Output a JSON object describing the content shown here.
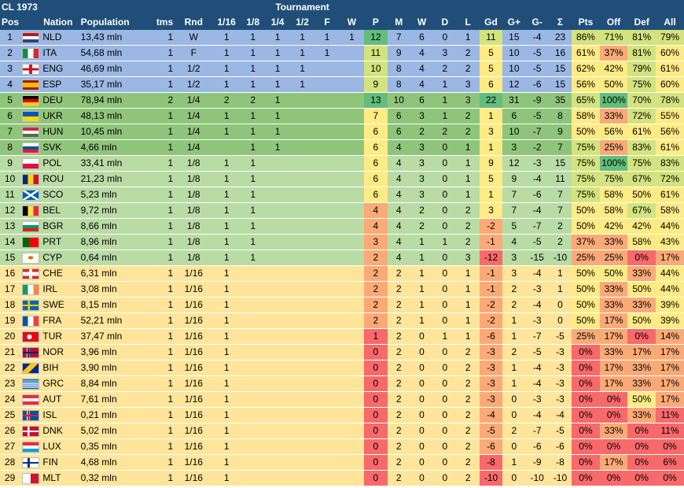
{
  "title": "CL 1973",
  "tournament_label": "Tournament",
  "columns": [
    "Pos",
    "Nation",
    "Population",
    "tms",
    "Rnd",
    "1/16",
    "1/8",
    "1/4",
    "1/2",
    "F",
    "W",
    "P",
    "M",
    "W",
    "D",
    "L",
    "Gd",
    "G+",
    "G-",
    "Σ",
    "Pts",
    "Off",
    "Def",
    "All"
  ],
  "colors": {
    "header": "#1f4e79",
    "band_top": "#9bb7e3",
    "band_group2": "#8fc57a",
    "band_group3": "#b9dba4",
    "band_bottom": "#ffe59a",
    "cell_red": "#f8696b",
    "cell_orange": "#fbaa77",
    "cell_yellow": "#ffeb84",
    "cell_lightgreen": "#d3e37e",
    "cell_green": "#63be7b",
    "cell_midgreen": "#a3d07f"
  },
  "rows": [
    {
      "pos": "1",
      "flag": "flag-nld",
      "nation": "NLD",
      "population": "13,43 mln",
      "tms": "1",
      "rnd": "W",
      "r16": "1",
      "r8": "1",
      "r4": "1",
      "r2": "1",
      "f": "1",
      "w": "1",
      "p": "12",
      "m": "7",
      "wins": "6",
      "d": "0",
      "l": "1",
      "gd": "11",
      "gp": "15",
      "gm": "-4",
      "sum": "23",
      "pts": "86%",
      "off": "71%",
      "def": "81%",
      "all": "79%"
    },
    {
      "pos": "2",
      "flag": "flag-ita",
      "nation": "ITA",
      "population": "54,68 mln",
      "tms": "1",
      "rnd": "F",
      "r16": "1",
      "r8": "1",
      "r4": "1",
      "r2": "1",
      "f": "1",
      "w": "",
      "p": "11",
      "m": "9",
      "wins": "4",
      "d": "3",
      "l": "2",
      "gd": "5",
      "gp": "10",
      "gm": "-5",
      "sum": "16",
      "pts": "61%",
      "off": "37%",
      "def": "81%",
      "all": "60%"
    },
    {
      "pos": "3",
      "flag": "flag-eng",
      "nation": "ENG",
      "population": "46,69 mln",
      "tms": "1",
      "rnd": "1/2",
      "r16": "1",
      "r8": "1",
      "r4": "1",
      "r2": "1",
      "f": "",
      "w": "",
      "p": "10",
      "m": "8",
      "wins": "4",
      "d": "2",
      "l": "2",
      "gd": "5",
      "gp": "10",
      "gm": "-5",
      "sum": "15",
      "pts": "62%",
      "off": "42%",
      "def": "79%",
      "all": "61%"
    },
    {
      "pos": "4",
      "flag": "flag-esp",
      "nation": "ESP",
      "population": "35,17 mln",
      "tms": "1",
      "rnd": "1/2",
      "r16": "1",
      "r8": "1",
      "r4": "1",
      "r2": "1",
      "f": "",
      "w": "",
      "p": "9",
      "m": "8",
      "wins": "4",
      "d": "1",
      "l": "3",
      "gd": "6",
      "gp": "12",
      "gm": "-6",
      "sum": "15",
      "pts": "56%",
      "off": "50%",
      "def": "75%",
      "all": "60%"
    },
    {
      "pos": "5",
      "flag": "flag-deu",
      "nation": "DEU",
      "population": "78,94 mln",
      "tms": "2",
      "rnd": "1/4",
      "r16": "2",
      "r8": "2",
      "r4": "1",
      "r2": "",
      "f": "",
      "w": "",
      "p": "13",
      "m": "10",
      "wins": "6",
      "d": "1",
      "l": "3",
      "gd": "22",
      "gp": "31",
      "gm": "-9",
      "sum": "35",
      "pts": "65%",
      "off": "100%",
      "def": "70%",
      "all": "78%"
    },
    {
      "pos": "6",
      "flag": "flag-ukr",
      "nation": "UKR",
      "population": "48,13 mln",
      "tms": "1",
      "rnd": "1/4",
      "r16": "1",
      "r8": "1",
      "r4": "1",
      "r2": "",
      "f": "",
      "w": "",
      "p": "7",
      "m": "6",
      "wins": "3",
      "d": "1",
      "l": "2",
      "gd": "1",
      "gp": "6",
      "gm": "-5",
      "sum": "8",
      "pts": "58%",
      "off": "33%",
      "def": "72%",
      "all": "55%"
    },
    {
      "pos": "7",
      "flag": "flag-hun",
      "nation": "HUN",
      "population": "10,45 mln",
      "tms": "1",
      "rnd": "1/4",
      "r16": "1",
      "r8": "1",
      "r4": "1",
      "r2": "",
      "f": "",
      "w": "",
      "p": "6",
      "m": "6",
      "wins": "2",
      "d": "2",
      "l": "2",
      "gd": "3",
      "gp": "10",
      "gm": "-7",
      "sum": "9",
      "pts": "50%",
      "off": "56%",
      "def": "61%",
      "all": "56%"
    },
    {
      "pos": "8",
      "flag": "flag-svk",
      "nation": "SVK",
      "population": "4,66 mln",
      "tms": "1",
      "rnd": "1/4",
      "r16": "",
      "r8": "1",
      "r4": "1",
      "r2": "",
      "f": "",
      "w": "",
      "p": "6",
      "m": "4",
      "wins": "3",
      "d": "0",
      "l": "1",
      "gd": "1",
      "gp": "3",
      "gm": "-2",
      "sum": "7",
      "pts": "75%",
      "off": "25%",
      "def": "83%",
      "all": "61%"
    },
    {
      "pos": "9",
      "flag": "flag-pol",
      "nation": "POL",
      "population": "33,41 mln",
      "tms": "1",
      "rnd": "1/8",
      "r16": "1",
      "r8": "1",
      "r4": "",
      "r2": "",
      "f": "",
      "w": "",
      "p": "6",
      "m": "4",
      "wins": "3",
      "d": "0",
      "l": "1",
      "gd": "9",
      "gp": "12",
      "gm": "-3",
      "sum": "15",
      "pts": "75%",
      "off": "100%",
      "def": "75%",
      "all": "83%"
    },
    {
      "pos": "10",
      "flag": "flag-rou",
      "nation": "ROU",
      "population": "21,23 mln",
      "tms": "1",
      "rnd": "1/8",
      "r16": "1",
      "r8": "1",
      "r4": "",
      "r2": "",
      "f": "",
      "w": "",
      "p": "6",
      "m": "4",
      "wins": "3",
      "d": "0",
      "l": "1",
      "gd": "5",
      "gp": "9",
      "gm": "-4",
      "sum": "11",
      "pts": "75%",
      "off": "75%",
      "def": "67%",
      "all": "72%"
    },
    {
      "pos": "11",
      "flag": "flag-sco",
      "nation": "SCO",
      "population": "5,23 mln",
      "tms": "1",
      "rnd": "1/8",
      "r16": "1",
      "r8": "1",
      "r4": "",
      "r2": "",
      "f": "",
      "w": "",
      "p": "6",
      "m": "4",
      "wins": "3",
      "d": "0",
      "l": "1",
      "gd": "1",
      "gp": "7",
      "gm": "-6",
      "sum": "7",
      "pts": "75%",
      "off": "58%",
      "def": "50%",
      "all": "61%"
    },
    {
      "pos": "12",
      "flag": "flag-bel",
      "nation": "BEL",
      "population": "9,72 mln",
      "tms": "1",
      "rnd": "1/8",
      "r16": "1",
      "r8": "1",
      "r4": "",
      "r2": "",
      "f": "",
      "w": "",
      "p": "4",
      "m": "4",
      "wins": "2",
      "d": "0",
      "l": "2",
      "gd": "3",
      "gp": "7",
      "gm": "-4",
      "sum": "7",
      "pts": "50%",
      "off": "58%",
      "def": "67%",
      "all": "58%"
    },
    {
      "pos": "13",
      "flag": "flag-bgr",
      "nation": "BGR",
      "population": "8,66 mln",
      "tms": "1",
      "rnd": "1/8",
      "r16": "1",
      "r8": "1",
      "r4": "",
      "r2": "",
      "f": "",
      "w": "",
      "p": "4",
      "m": "4",
      "wins": "2",
      "d": "0",
      "l": "2",
      "gd": "-2",
      "gp": "5",
      "gm": "-7",
      "sum": "2",
      "pts": "50%",
      "off": "42%",
      "def": "42%",
      "all": "44%"
    },
    {
      "pos": "14",
      "flag": "flag-prt",
      "nation": "PRT",
      "population": "8,96 mln",
      "tms": "1",
      "rnd": "1/8",
      "r16": "1",
      "r8": "1",
      "r4": "",
      "r2": "",
      "f": "",
      "w": "",
      "p": "3",
      "m": "4",
      "wins": "1",
      "d": "1",
      "l": "2",
      "gd": "-1",
      "gp": "4",
      "gm": "-5",
      "sum": "2",
      "pts": "37%",
      "off": "33%",
      "def": "58%",
      "all": "43%"
    },
    {
      "pos": "15",
      "flag": "flag-cyp",
      "nation": "CYP",
      "population": "0,64 mln",
      "tms": "1",
      "rnd": "1/8",
      "r16": "1",
      "r8": "1",
      "r4": "",
      "r2": "",
      "f": "",
      "w": "",
      "p": "2",
      "m": "4",
      "wins": "1",
      "d": "0",
      "l": "3",
      "gd": "-12",
      "gp": "3",
      "gm": "-15",
      "sum": "-10",
      "pts": "25%",
      "off": "25%",
      "def": "0%",
      "all": "17%"
    },
    {
      "pos": "16",
      "flag": "flag-che",
      "nation": "CHE",
      "population": "6,31 mln",
      "tms": "1",
      "rnd": "1/16",
      "r16": "1",
      "r8": "",
      "r4": "",
      "r2": "",
      "f": "",
      "w": "",
      "p": "2",
      "m": "2",
      "wins": "1",
      "d": "0",
      "l": "1",
      "gd": "-1",
      "gp": "3",
      "gm": "-4",
      "sum": "1",
      "pts": "50%",
      "off": "50%",
      "def": "33%",
      "all": "44%"
    },
    {
      "pos": "17",
      "flag": "flag-irl",
      "nation": "IRL",
      "population": "3,08 mln",
      "tms": "1",
      "rnd": "1/16",
      "r16": "1",
      "r8": "",
      "r4": "",
      "r2": "",
      "f": "",
      "w": "",
      "p": "2",
      "m": "2",
      "wins": "1",
      "d": "0",
      "l": "1",
      "gd": "-1",
      "gp": "2",
      "gm": "-3",
      "sum": "1",
      "pts": "50%",
      "off": "33%",
      "def": "50%",
      "all": "44%"
    },
    {
      "pos": "18",
      "flag": "flag-swe",
      "nation": "SWE",
      "population": "8,15 mln",
      "tms": "1",
      "rnd": "1/16",
      "r16": "1",
      "r8": "",
      "r4": "",
      "r2": "",
      "f": "",
      "w": "",
      "p": "2",
      "m": "2",
      "wins": "1",
      "d": "0",
      "l": "1",
      "gd": "-2",
      "gp": "2",
      "gm": "-4",
      "sum": "0",
      "pts": "50%",
      "off": "33%",
      "def": "33%",
      "all": "39%"
    },
    {
      "pos": "19",
      "flag": "flag-fra",
      "nation": "FRA",
      "population": "52,21 mln",
      "tms": "1",
      "rnd": "1/16",
      "r16": "1",
      "r8": "",
      "r4": "",
      "r2": "",
      "f": "",
      "w": "",
      "p": "2",
      "m": "2",
      "wins": "1",
      "d": "0",
      "l": "1",
      "gd": "-2",
      "gp": "1",
      "gm": "-3",
      "sum": "0",
      "pts": "50%",
      "off": "17%",
      "def": "50%",
      "all": "39%"
    },
    {
      "pos": "20",
      "flag": "flag-tur",
      "nation": "TUR",
      "population": "37,47 mln",
      "tms": "1",
      "rnd": "1/16",
      "r16": "1",
      "r8": "",
      "r4": "",
      "r2": "",
      "f": "",
      "w": "",
      "p": "1",
      "m": "2",
      "wins": "0",
      "d": "1",
      "l": "1",
      "gd": "-6",
      "gp": "1",
      "gm": "-7",
      "sum": "-5",
      "pts": "25%",
      "off": "17%",
      "def": "0%",
      "all": "14%"
    },
    {
      "pos": "21",
      "flag": "flag-nor",
      "nation": "NOR",
      "population": "3,96 mln",
      "tms": "1",
      "rnd": "1/16",
      "r16": "1",
      "r8": "",
      "r4": "",
      "r2": "",
      "f": "",
      "w": "",
      "p": "0",
      "m": "2",
      "wins": "0",
      "d": "0",
      "l": "2",
      "gd": "-3",
      "gp": "2",
      "gm": "-5",
      "sum": "-3",
      "pts": "0%",
      "off": "33%",
      "def": "17%",
      "all": "17%"
    },
    {
      "pos": "22",
      "flag": "flag-bih",
      "nation": "BIH",
      "population": "3,90 mln",
      "tms": "1",
      "rnd": "1/16",
      "r16": "1",
      "r8": "",
      "r4": "",
      "r2": "",
      "f": "",
      "w": "",
      "p": "0",
      "m": "2",
      "wins": "0",
      "d": "0",
      "l": "2",
      "gd": "-3",
      "gp": "1",
      "gm": "-4",
      "sum": "-3",
      "pts": "0%",
      "off": "17%",
      "def": "33%",
      "all": "17%"
    },
    {
      "pos": "23",
      "flag": "flag-grc",
      "nation": "GRC",
      "population": "8,84 mln",
      "tms": "1",
      "rnd": "1/16",
      "r16": "1",
      "r8": "",
      "r4": "",
      "r2": "",
      "f": "",
      "w": "",
      "p": "0",
      "m": "2",
      "wins": "0",
      "d": "0",
      "l": "2",
      "gd": "-3",
      "gp": "1",
      "gm": "-4",
      "sum": "-3",
      "pts": "0%",
      "off": "17%",
      "def": "33%",
      "all": "17%"
    },
    {
      "pos": "24",
      "flag": "flag-aut",
      "nation": "AUT",
      "population": "7,61 mln",
      "tms": "1",
      "rnd": "1/16",
      "r16": "1",
      "r8": "",
      "r4": "",
      "r2": "",
      "f": "",
      "w": "",
      "p": "0",
      "m": "2",
      "wins": "0",
      "d": "0",
      "l": "2",
      "gd": "-3",
      "gp": "0",
      "gm": "-3",
      "sum": "-3",
      "pts": "0%",
      "off": "0%",
      "def": "50%",
      "all": "17%"
    },
    {
      "pos": "25",
      "flag": "flag-isl",
      "nation": "ISL",
      "population": "0,21 mln",
      "tms": "1",
      "rnd": "1/16",
      "r16": "1",
      "r8": "",
      "r4": "",
      "r2": "",
      "f": "",
      "w": "",
      "p": "0",
      "m": "2",
      "wins": "0",
      "d": "0",
      "l": "2",
      "gd": "-4",
      "gp": "0",
      "gm": "-4",
      "sum": "-4",
      "pts": "0%",
      "off": "0%",
      "def": "33%",
      "all": "11%"
    },
    {
      "pos": "26",
      "flag": "flag-dnk",
      "nation": "DNK",
      "population": "5,02 mln",
      "tms": "1",
      "rnd": "1/16",
      "r16": "1",
      "r8": "",
      "r4": "",
      "r2": "",
      "f": "",
      "w": "",
      "p": "0",
      "m": "2",
      "wins": "0",
      "d": "0",
      "l": "2",
      "gd": "-5",
      "gp": "2",
      "gm": "-7",
      "sum": "-5",
      "pts": "0%",
      "off": "33%",
      "def": "0%",
      "all": "11%"
    },
    {
      "pos": "27",
      "flag": "flag-lux",
      "nation": "LUX",
      "population": "0,35 mln",
      "tms": "1",
      "rnd": "1/16",
      "r16": "1",
      "r8": "",
      "r4": "",
      "r2": "",
      "f": "",
      "w": "",
      "p": "0",
      "m": "2",
      "wins": "0",
      "d": "0",
      "l": "2",
      "gd": "-6",
      "gp": "0",
      "gm": "-6",
      "sum": "-6",
      "pts": "0%",
      "off": "0%",
      "def": "0%",
      "all": "0%"
    },
    {
      "pos": "28",
      "flag": "flag-fin",
      "nation": "FIN",
      "population": "4,68 mln",
      "tms": "1",
      "rnd": "1/16",
      "r16": "1",
      "r8": "",
      "r4": "",
      "r2": "",
      "f": "",
      "w": "",
      "p": "0",
      "m": "2",
      "wins": "0",
      "d": "0",
      "l": "2",
      "gd": "-8",
      "gp": "1",
      "gm": "-9",
      "sum": "-8",
      "pts": "0%",
      "off": "17%",
      "def": "0%",
      "all": "6%"
    },
    {
      "pos": "29",
      "flag": "flag-mlt",
      "nation": "MLT",
      "population": "0,32 mln",
      "tms": "1",
      "rnd": "1/16",
      "r16": "1",
      "r8": "",
      "r4": "",
      "r2": "",
      "f": "",
      "w": "",
      "p": "0",
      "m": "2",
      "wins": "0",
      "d": "0",
      "l": "2",
      "gd": "-10",
      "gp": "0",
      "gm": "-10",
      "sum": "-10",
      "pts": "0%",
      "off": "0%",
      "def": "0%",
      "all": "0%"
    }
  ]
}
